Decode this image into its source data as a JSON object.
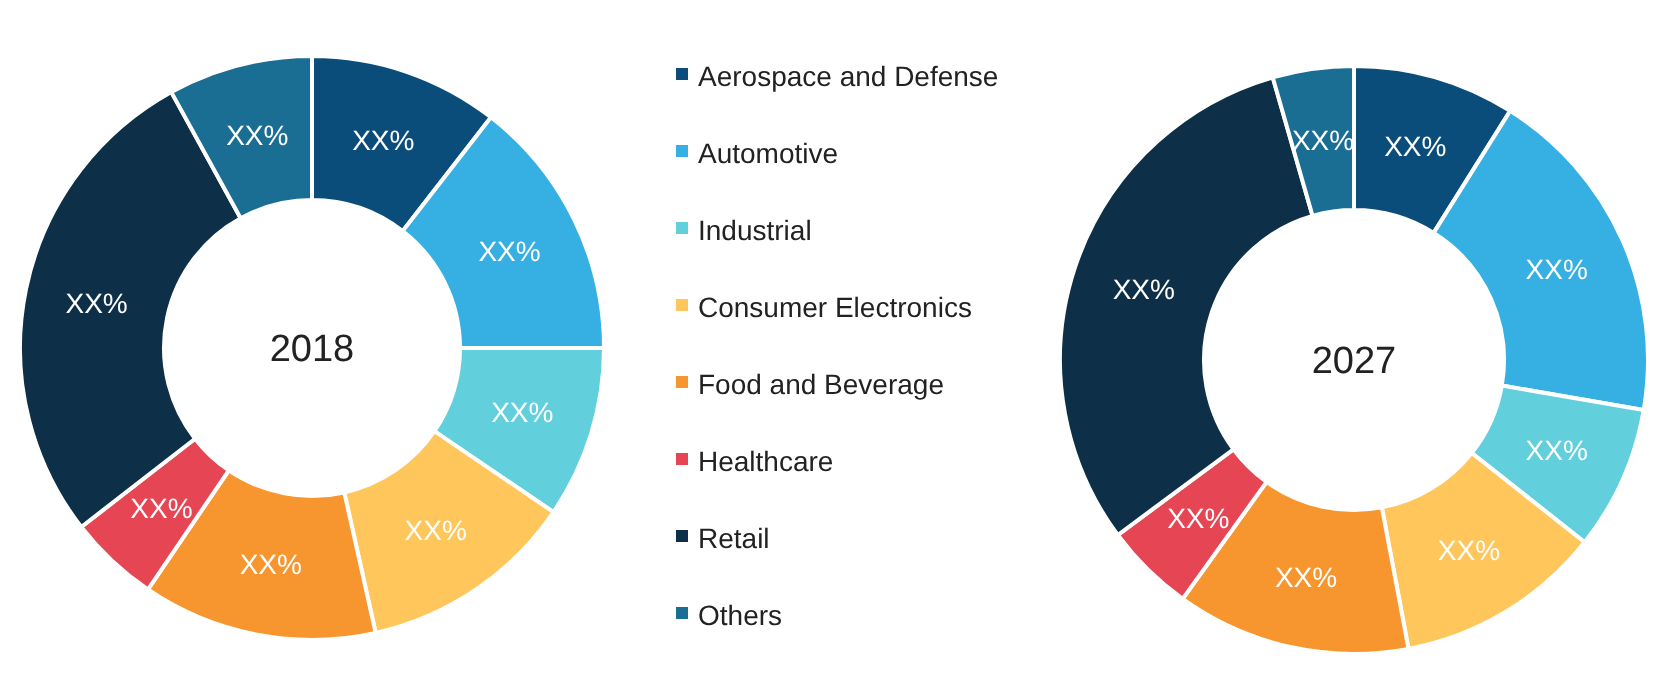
{
  "chart_data": [
    {
      "type": "donut",
      "title": "2018",
      "categories": [
        "Aerospace and Defense",
        "Automotive",
        "Industrial",
        "Consumer Electronics",
        "Food and Beverage",
        "Healthcare",
        "Retail",
        "Others"
      ],
      "values": [
        10.5,
        14.5,
        9.5,
        12,
        13,
        5,
        27.5,
        8
      ],
      "colors": [
        "#0b4d7a",
        "#36b0e3",
        "#62cfdc",
        "#ffc65c",
        "#f7962e",
        "#e64654",
        "#0d3048",
        "#1a6d93"
      ],
      "value_labels": [
        "XX%",
        "XX%",
        "XX%",
        "XX%",
        "XX%",
        "XX%",
        "XX%",
        "XX%"
      ],
      "legend": "right"
    },
    {
      "type": "donut",
      "title": "2027",
      "categories": [
        null,
        null,
        null,
        null,
        null,
        null,
        null,
        null
      ],
      "values": [
        9,
        19,
        8,
        11.5,
        13,
        5,
        31,
        4.5
      ],
      "colors": [
        "#0b4d7a",
        "#36b0e3",
        "#62cfdc",
        "#ffc65c",
        "#f7962e",
        "#e64654",
        "#0d3048",
        "#1a6d93"
      ],
      "value_labels": [
        "XX%",
        "XX%",
        "XX%",
        "XX%",
        "XX%",
        "XX%",
        "XX%",
        "XX%"
      ]
    }
  ]
}
